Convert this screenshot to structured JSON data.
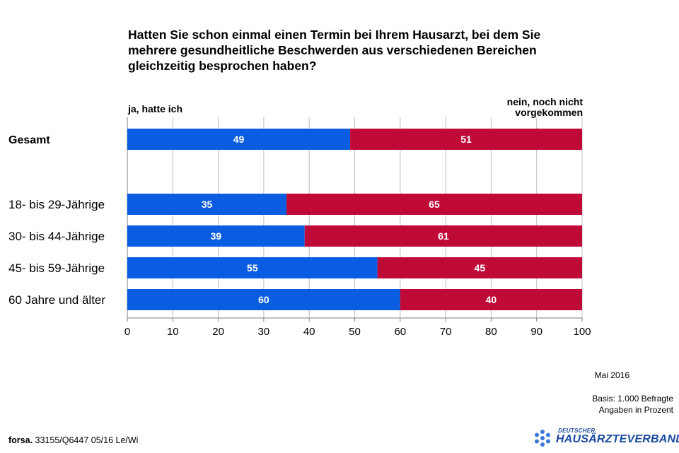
{
  "title": "Hatten Sie schon einmal einen Termin bei Ihrem Hausarzt, bei dem Sie\nmehrere gesundheitliche Beschwerden aus verschiedenen Bereichen\ngleichzeitig besprochen haben?",
  "legend": {
    "left": "ja, hatte ich",
    "right": "nein, noch nicht\nvorgekommen"
  },
  "footer": {
    "date": "Mai 2016",
    "basis": "Basis: 1.000 Befragte",
    "unit": "Angaben in Prozent",
    "source_bold": "forsa.",
    "source_rest": " 33155/Q6447 05/16 Le/Wi"
  },
  "logo": {
    "top": "DEUTSCHER",
    "main": "HAUSÄRZTEVERBAND"
  },
  "colors": {
    "ja": "#0a5de0",
    "nein": "#bf0a38",
    "grid": "#bfbfbf"
  },
  "chart_data": {
    "type": "bar",
    "orientation": "horizontal",
    "stacked": true,
    "categories": [
      "Gesamt",
      "18- bis 29-Jährige",
      "30- bis 44-Jährige",
      "45- bis 59-Jährige",
      "60 Jahre und älter"
    ],
    "series": [
      {
        "name": "ja, hatte ich",
        "values": [
          49,
          35,
          39,
          55,
          60
        ]
      },
      {
        "name": "nein, noch nicht vorgekommen",
        "values": [
          51,
          65,
          61,
          45,
          40
        ]
      }
    ],
    "xlim": [
      0,
      100
    ],
    "xticks": [
      0,
      10,
      20,
      30,
      40,
      50,
      60,
      70,
      80,
      90,
      100
    ],
    "grid": true
  }
}
